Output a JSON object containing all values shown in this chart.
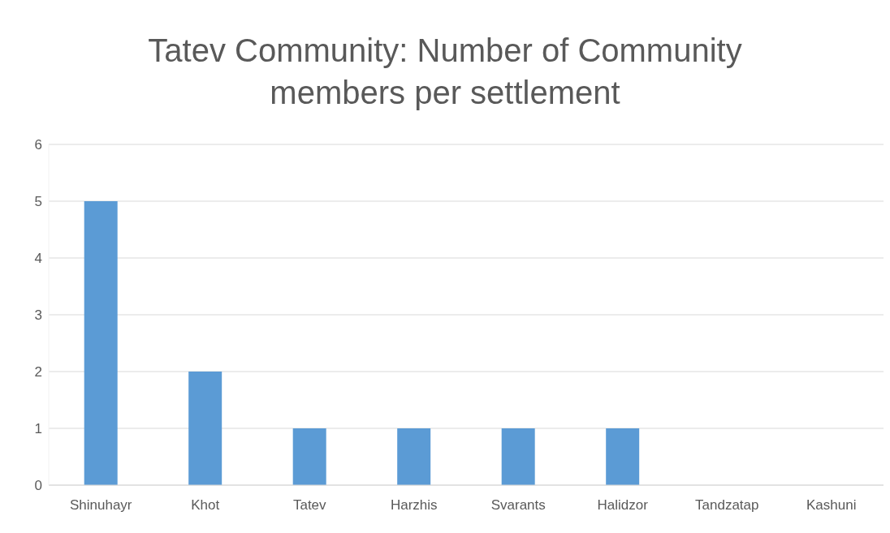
{
  "chart_data": {
    "type": "bar",
    "title": "Tatev Community: Number of Community members per settlement",
    "categories": [
      "Shinuhayr",
      "Khot",
      "Tatev",
      "Harzhis",
      "Svarants",
      "Halidzor",
      "Tandzatap",
      "Kashuni"
    ],
    "values": [
      5,
      2,
      1,
      1,
      1,
      1,
      0,
      0
    ],
    "color": "#5b9bd5",
    "ylim": [
      0,
      6
    ],
    "yticks": [
      0,
      1,
      2,
      3,
      4,
      5,
      6
    ],
    "grid": "y"
  }
}
